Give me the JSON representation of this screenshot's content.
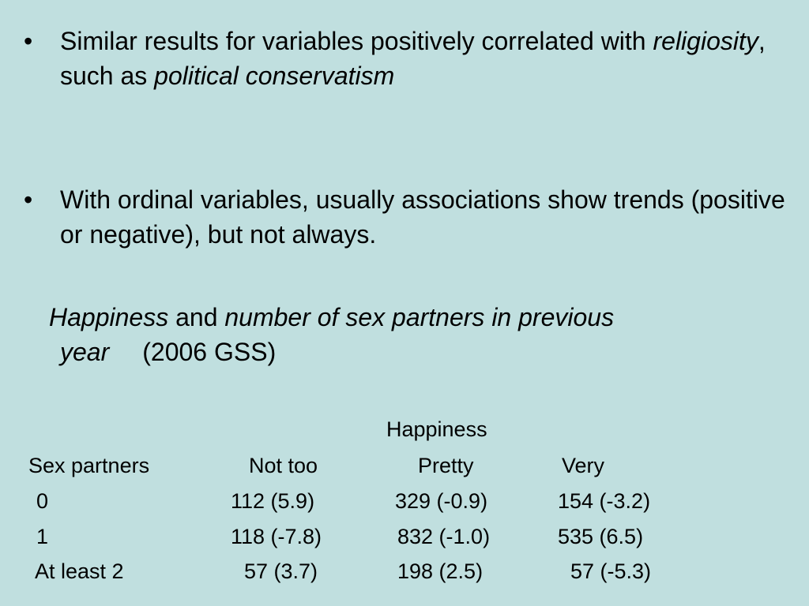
{
  "bullets": [
    {
      "marker": "•",
      "parts": [
        "Similar results for variables positively correlated with ",
        "religiosity",
        ", such as ",
        "political conservatism"
      ]
    },
    {
      "marker": "•",
      "text": "With ordinal variables, usually associations show trends (positive or negative), but not always."
    }
  ],
  "subtitle": {
    "var1": "Happiness",
    "and": "and",
    "var2_line1": "number of sex partners in previous",
    "var2_line2": "year",
    "source": "(2006 GSS)"
  },
  "table": {
    "column_group": "Happiness",
    "row_header": "Sex partners",
    "columns": [
      "Not too",
      "Pretty",
      "Very"
    ],
    "rows": [
      {
        "label": "0",
        "cells": [
          "112 (5.9)",
          "329 (-0.9)",
          "154 (-3.2)"
        ]
      },
      {
        "label": "1",
        "cells": [
          "118 (-7.8)",
          "832 (-1.0)",
          "535 (6.5)"
        ]
      },
      {
        "label": "At least 2",
        "cells": [
          "57 (3.7)",
          "198 (2.5)",
          "57 (-5.3)"
        ]
      }
    ]
  }
}
